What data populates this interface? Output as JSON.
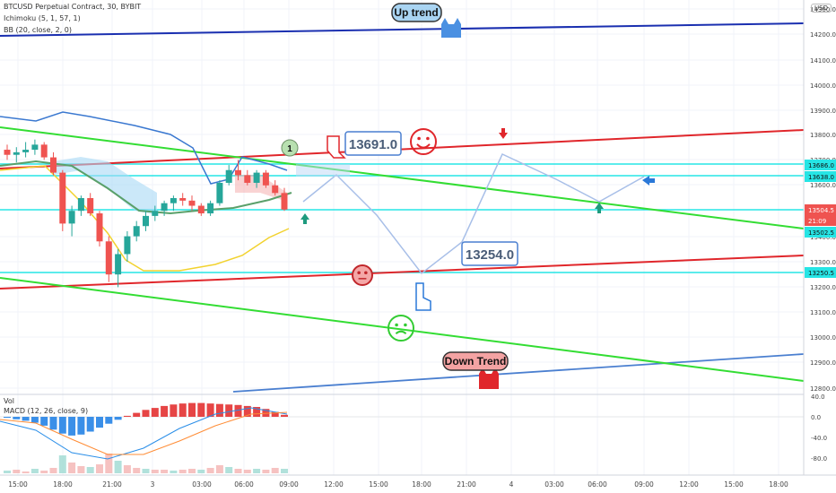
{
  "header": {
    "symbol": "BTCUSD Perpetual Contract, 30, BYBIT",
    "ind1": "Ichimoku (5, 1, 57, 1)",
    "ind2": "BB (20, close, 2, 0)",
    "vol": "Vol",
    "macd": "MACD (12, 26, close, 9)",
    "currency": "USD"
  },
  "annotations": {
    "up_trend": "Up trend",
    "down_trend": "Down Trend",
    "target_high": "13691.0",
    "target_low": "13254.0",
    "marker": "1"
  },
  "colors": {
    "up": "#26a69a",
    "down": "#ef5350",
    "trend_red": "#e0262b",
    "trend_green": "#33dd33",
    "up_line": "#1a2fb0",
    "down_line": "#4a7fd0",
    "cyan": "#26e5e5",
    "macd_pos": "#e64545",
    "macd_neg": "#3a8fe8"
  },
  "chart_data": {
    "type": "candlestick",
    "y_ticks": [
      "14300.0",
      "14200.0",
      "14100.0",
      "14000.0",
      "13900.0",
      "13800.0",
      "13700.0",
      "13600.0",
      "13400.0",
      "13300.0",
      "13200.0",
      "13100.0",
      "13000.0",
      "12900.0",
      "12800.0"
    ],
    "price_tags": [
      {
        "value": "13686.0",
        "color": "#26e5e5",
        "text_color": "#111"
      },
      {
        "value": "13638.0",
        "color": "#26e5e5",
        "text_color": "#111"
      },
      {
        "value": "13504.5",
        "color": "#ef5350",
        "text_color": "#fff"
      },
      {
        "value": "21:09",
        "color": "#ef5350",
        "text_color": "#fff"
      },
      {
        "value": "13502.5",
        "color": "#26e5e5",
        "text_color": "#111"
      },
      {
        "value": "13250.5",
        "color": "#26e5e5",
        "text_color": "#111"
      }
    ],
    "macd_ticks": [
      "40.0",
      "0.0",
      "-40.0",
      "-80.0"
    ],
    "x_ticks": [
      "15:00",
      "18:00",
      "21:00",
      "3",
      "03:00",
      "06:00",
      "09:00",
      "12:00",
      "15:00",
      "18:00",
      "21:00",
      "4",
      "03:00",
      "06:00",
      "09:00",
      "12:00",
      "15:00",
      "18:00"
    ],
    "candles": [
      [
        13740,
        13760,
        13700,
        13720
      ],
      [
        13720,
        13750,
        13690,
        13730
      ],
      [
        13730,
        13770,
        13710,
        13740
      ],
      [
        13740,
        13780,
        13720,
        13760
      ],
      [
        13760,
        13770,
        13700,
        13710
      ],
      [
        13710,
        13730,
        13640,
        13650
      ],
      [
        13650,
        13660,
        13420,
        13450
      ],
      [
        13450,
        13520,
        13400,
        13500
      ],
      [
        13500,
        13560,
        13480,
        13550
      ],
      [
        13550,
        13570,
        13480,
        13490
      ],
      [
        13490,
        13500,
        13360,
        13380
      ],
      [
        13380,
        13400,
        13220,
        13250
      ],
      [
        13250,
        13350,
        13200,
        13330
      ],
      [
        13330,
        13420,
        13300,
        13400
      ],
      [
        13400,
        13460,
        13380,
        13440
      ],
      [
        13440,
        13500,
        13420,
        13480
      ],
      [
        13480,
        13520,
        13460,
        13500
      ],
      [
        13500,
        13540,
        13480,
        13530
      ],
      [
        13530,
        13560,
        13500,
        13550
      ],
      [
        13550,
        13570,
        13520,
        13540
      ],
      [
        13540,
        13560,
        13500,
        13520
      ],
      [
        13520,
        13530,
        13480,
        13490
      ],
      [
        13490,
        13540,
        13480,
        13530
      ],
      [
        13530,
        13620,
        13520,
        13610
      ],
      [
        13610,
        13680,
        13600,
        13660
      ],
      [
        13660,
        13700,
        13620,
        13640
      ],
      [
        13640,
        13660,
        13600,
        13610
      ],
      [
        13610,
        13660,
        13590,
        13650
      ],
      [
        13650,
        13660,
        13590,
        13600
      ],
      [
        13600,
        13620,
        13560,
        13570
      ],
      [
        13570,
        13590,
        13500,
        13505
      ]
    ],
    "volume": [
      3,
      4,
      2,
      5,
      3,
      6,
      20,
      12,
      8,
      7,
      10,
      22,
      14,
      9,
      6,
      5,
      4,
      4,
      3,
      4,
      5,
      4,
      6,
      9,
      7,
      5,
      4,
      5,
      4,
      6,
      5
    ],
    "macd_hist": [
      -2,
      -5,
      -8,
      -12,
      -18,
      -26,
      -34,
      -38,
      -36,
      -30,
      -22,
      -14,
      -6,
      2,
      8,
      14,
      18,
      22,
      25,
      27,
      28,
      28,
      27,
      26,
      25,
      24,
      22,
      20,
      16,
      10,
      4
    ]
  }
}
